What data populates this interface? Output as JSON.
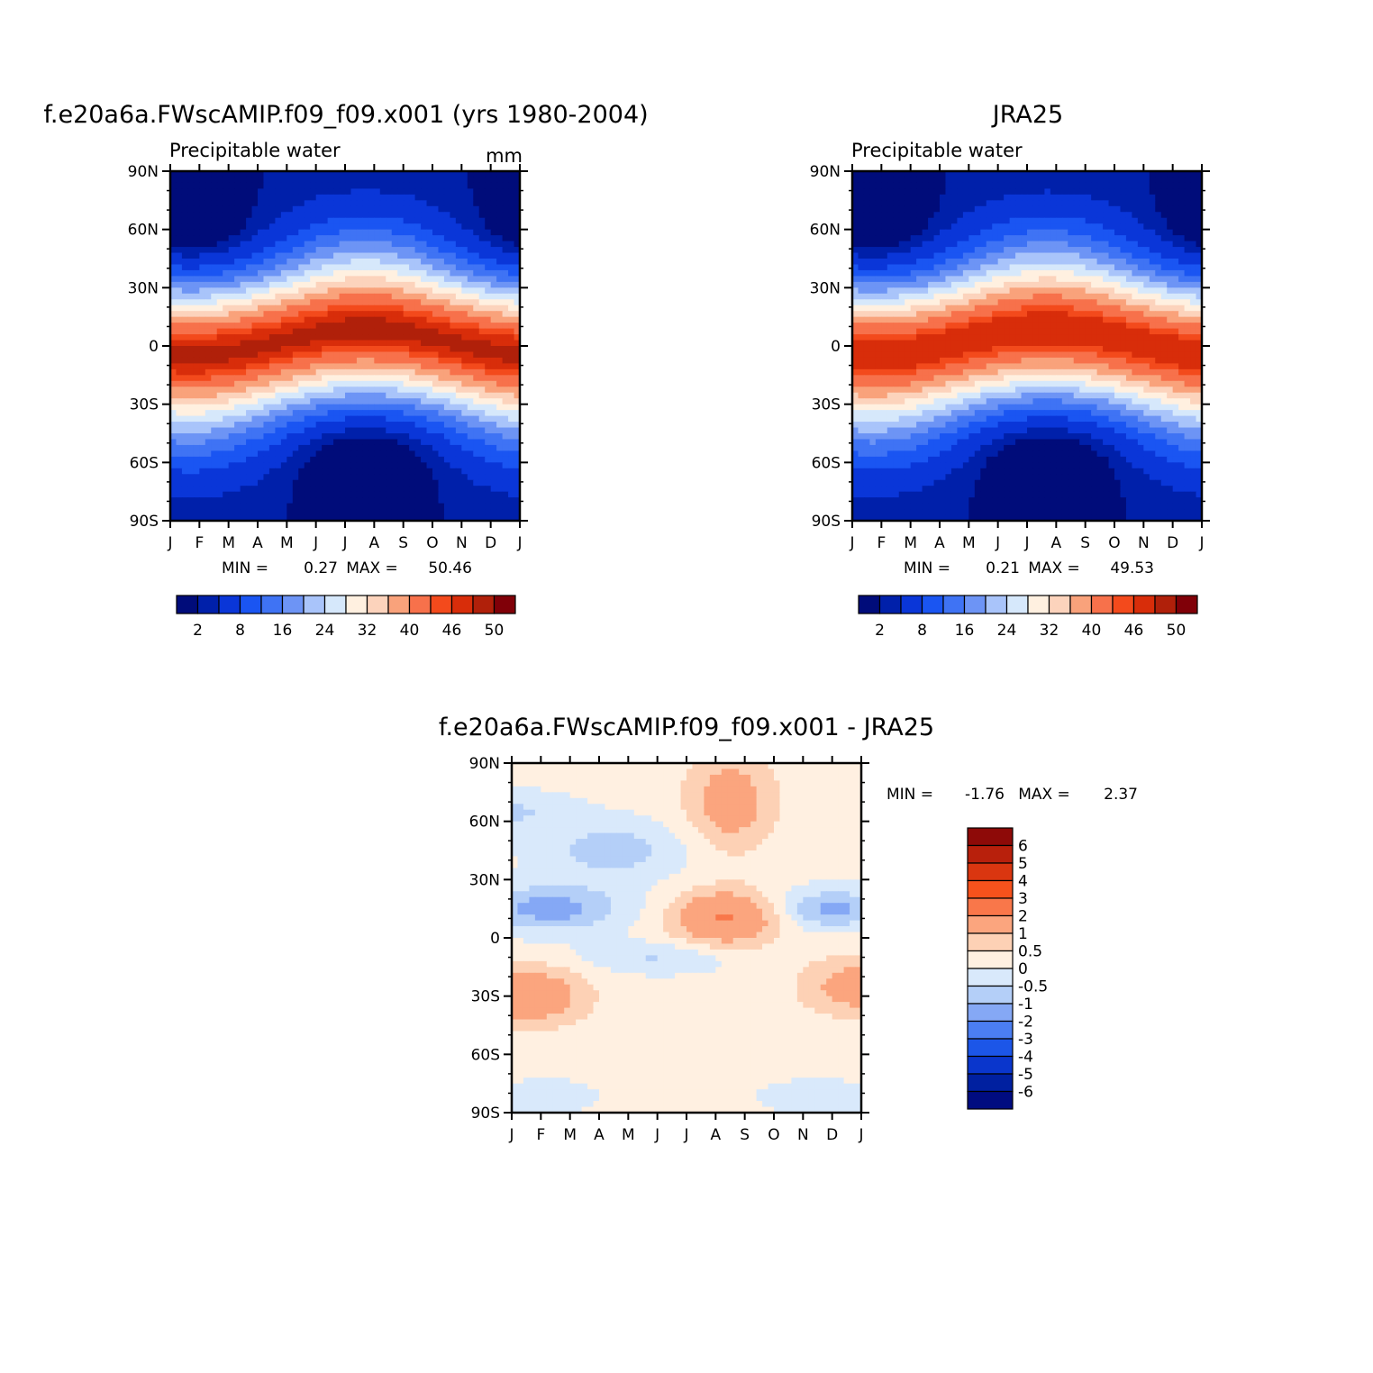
{
  "chart_data": [
    {
      "type": "heatmap",
      "title": "f.e20a6a.FWscAMIP.f09_f09.x001 (yrs 1980-2004)",
      "subtitle": "Precipitable water",
      "units": "mm",
      "x_ticks": [
        "J",
        "F",
        "M",
        "A",
        "M",
        "J",
        "J",
        "A",
        "S",
        "O",
        "N",
        "D",
        "J"
      ],
      "y_ticks": [
        "90N",
        "60N",
        "30N",
        "0",
        "30S",
        "60S",
        "90S"
      ],
      "y_range": [
        -90,
        90
      ],
      "min_max": {
        "min_label": "MIN =",
        "min": "0.27",
        "max_label": "MAX =",
        "max": "50.46"
      },
      "colorbar": {
        "labels": [
          "2",
          "8",
          "16",
          "24",
          "32",
          "40",
          "46",
          "50"
        ],
        "colors": [
          "#000c7a",
          "#0020aa",
          "#0a36d8",
          "#1a55f2",
          "#3f73f4",
          "#6d94f5",
          "#a9c4fa",
          "#d6e8fb",
          "#fff0e0",
          "#fcd3bc",
          "#f9a27b",
          "#f7714b",
          "#f34a1c",
          "#d82d0a",
          "#b0200a",
          "#800008"
        ]
      }
    },
    {
      "type": "heatmap",
      "title": "JRA25",
      "subtitle": "Precipitable water",
      "x_ticks": [
        "J",
        "F",
        "M",
        "A",
        "M",
        "J",
        "J",
        "A",
        "S",
        "O",
        "N",
        "D",
        "J"
      ],
      "y_ticks": [
        "90N",
        "60N",
        "30N",
        "0",
        "30S",
        "60S",
        "90S"
      ],
      "y_range": [
        -90,
        90
      ],
      "min_max": {
        "min_label": "MIN =",
        "min": "0.21",
        "max_label": "MAX =",
        "max": "49.53"
      },
      "colorbar": {
        "labels": [
          "2",
          "8",
          "16",
          "24",
          "32",
          "40",
          "46",
          "50"
        ],
        "colors": [
          "#000c7a",
          "#0020aa",
          "#0a36d8",
          "#1a55f2",
          "#3f73f4",
          "#6d94f5",
          "#a9c4fa",
          "#d6e8fb",
          "#fff0e0",
          "#fcd3bc",
          "#f9a27b",
          "#f7714b",
          "#f34a1c",
          "#d82d0a",
          "#b0200a",
          "#800008"
        ]
      }
    },
    {
      "type": "heatmap",
      "title": "f.e20a6a.FWscAMIP.f09_f09.x001 - JRA25",
      "x_ticks": [
        "J",
        "F",
        "M",
        "A",
        "M",
        "J",
        "J",
        "A",
        "S",
        "O",
        "N",
        "D",
        "J"
      ],
      "y_ticks": [
        "90N",
        "60N",
        "30N",
        "0",
        "30S",
        "60S",
        "90S"
      ],
      "y_range": [
        -90,
        90
      ],
      "min_max": {
        "min_label": "MIN =",
        "min": "-1.76",
        "max_label": "MAX =",
        "max": "2.37"
      },
      "colorbar": {
        "labels": [
          "6",
          "5",
          "4",
          "3",
          "2",
          "1",
          "0.5",
          "0",
          "-0.5",
          "-1",
          "-2",
          "-3",
          "-4",
          "-5",
          "-6"
        ],
        "colors": [
          "#8e0a08",
          "#b8200c",
          "#da3610",
          "#f7521c",
          "#f9774a",
          "#fba57e",
          "#fdd1b5",
          "#fff0e1",
          "#d9e9fb",
          "#b4cff8",
          "#85a8f5",
          "#4b7ef2",
          "#1c56e8",
          "#0a36cc",
          "#0020a0",
          "#000c80"
        ]
      }
    }
  ]
}
